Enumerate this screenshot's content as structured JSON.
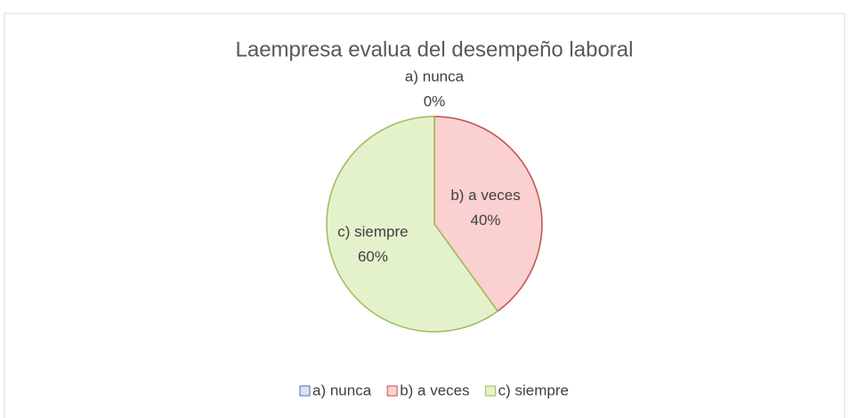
{
  "chart_data": {
    "type": "pie",
    "title": "Laempresa evalua del desempeño laboral",
    "categories": [
      "a) nunca",
      "b) a veces",
      "c) siempre"
    ],
    "values": [
      0,
      40,
      60
    ],
    "value_labels": [
      "0%",
      "40%",
      "60%"
    ],
    "colors": [
      "#dae3f3",
      "#fbd0d0",
      "#e4f2cc"
    ],
    "edge_colors": [
      "#4472c4",
      "#c0504d",
      "#9bbb59"
    ],
    "legend": "bottom"
  }
}
